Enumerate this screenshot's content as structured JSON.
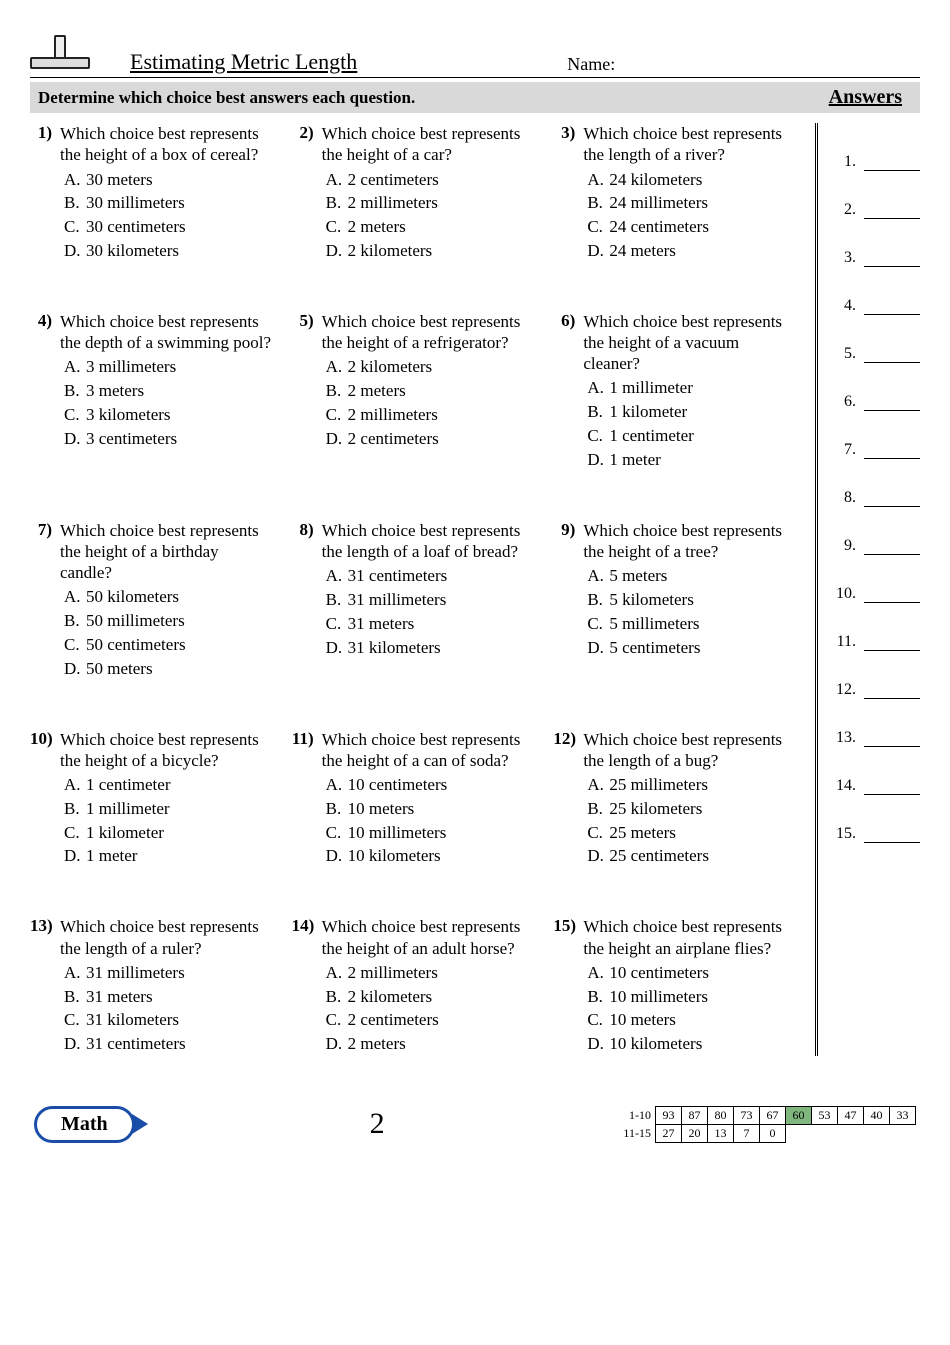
{
  "header": {
    "title": "Estimating Metric Length",
    "name_label": "Name:"
  },
  "instruction": "Determine which choice best answers each question.",
  "answers_heading": "Answers",
  "choices_labels": [
    "A.",
    "B.",
    "C.",
    "D."
  ],
  "questions": [
    {
      "n": "1)",
      "stem": "Which choice best represents the height of a box of cereal?",
      "opts": [
        "30 meters",
        "30 millimeters",
        "30 centimeters",
        "30 kilometers"
      ]
    },
    {
      "n": "2)",
      "stem": "Which choice best represents the height of a car?",
      "opts": [
        "2 centimeters",
        "2 millimeters",
        "2 meters",
        "2 kilometers"
      ]
    },
    {
      "n": "3)",
      "stem": "Which choice best represents the length of a river?",
      "opts": [
        "24 kilometers",
        "24 millimeters",
        "24 centimeters",
        "24 meters"
      ]
    },
    {
      "n": "4)",
      "stem": "Which choice best represents the depth of a swimming pool?",
      "opts": [
        "3 millimeters",
        "3 meters",
        "3 kilometers",
        "3 centimeters"
      ]
    },
    {
      "n": "5)",
      "stem": "Which choice best represents the height of a refrigerator?",
      "opts": [
        "2 kilometers",
        "2 meters",
        "2 millimeters",
        "2 centimeters"
      ]
    },
    {
      "n": "6)",
      "stem": "Which choice best represents the height of a vacuum cleaner?",
      "opts": [
        "1 millimeter",
        "1 kilometer",
        "1 centimeter",
        "1 meter"
      ]
    },
    {
      "n": "7)",
      "stem": "Which choice best represents the height of a birthday candle?",
      "opts": [
        "50 kilometers",
        "50 millimeters",
        "50 centimeters",
        "50 meters"
      ]
    },
    {
      "n": "8)",
      "stem": "Which choice best represents the length of a loaf of bread?",
      "opts": [
        "31 centimeters",
        "31 millimeters",
        "31 meters",
        "31 kilometers"
      ]
    },
    {
      "n": "9)",
      "stem": "Which choice best represents the height of a tree?",
      "opts": [
        "5 meters",
        "5 kilometers",
        "5 millimeters",
        "5 centimeters"
      ]
    },
    {
      "n": "10)",
      "stem": "Which choice best represents the height of a bicycle?",
      "opts": [
        "1 centimeter",
        "1 millimeter",
        "1 kilometer",
        "1 meter"
      ]
    },
    {
      "n": "11)",
      "stem": "Which choice best represents the height of a can of soda?",
      "opts": [
        "10 centimeters",
        "10 meters",
        "10 millimeters",
        "10 kilometers"
      ]
    },
    {
      "n": "12)",
      "stem": "Which choice best represents the length of a bug?",
      "opts": [
        "25 millimeters",
        "25 kilometers",
        "25 meters",
        "25 centimeters"
      ]
    },
    {
      "n": "13)",
      "stem": "Which choice best represents the length of a ruler?",
      "opts": [
        "31 millimeters",
        "31 meters",
        "31 kilometers",
        "31 centimeters"
      ]
    },
    {
      "n": "14)",
      "stem": "Which choice best represents the height of an adult horse?",
      "opts": [
        "2 millimeters",
        "2 kilometers",
        "2 centimeters",
        "2 meters"
      ]
    },
    {
      "n": "15)",
      "stem": "Which choice best represents the height an airplane flies?",
      "opts": [
        "10 centimeters",
        "10 millimeters",
        "10 meters",
        "10 kilometers"
      ]
    }
  ],
  "answer_numbers": [
    "1.",
    "2.",
    "3.",
    "4.",
    "5.",
    "6.",
    "7.",
    "8.",
    "9.",
    "10.",
    "11.",
    "12.",
    "13.",
    "14.",
    "15."
  ],
  "footer": {
    "math_label": "Math",
    "page_number": "2",
    "score_rows": [
      {
        "label": "1-10",
        "cells": [
          "93",
          "87",
          "80",
          "73",
          "67",
          "60",
          "53",
          "47",
          "40",
          "33"
        ],
        "hl": 5
      },
      {
        "label": "11-15",
        "cells": [
          "27",
          "20",
          "13",
          "7",
          "0"
        ],
        "hl": -1
      }
    ]
  },
  "colors": {
    "accent": "#1a4da8",
    "instr_bg": "#d9d9d9",
    "score_hl": "#7fb77e"
  }
}
